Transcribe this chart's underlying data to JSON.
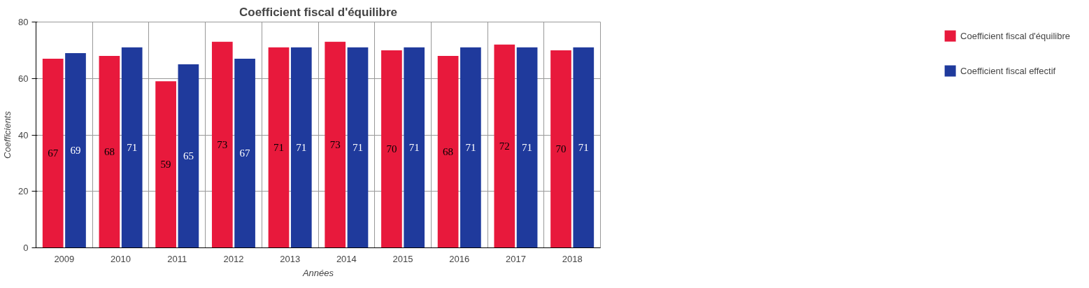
{
  "chart_data": {
    "type": "bar",
    "title": "Coefficient fiscal d'équilibre",
    "xlabel": "Années",
    "ylabel": "Coefficients",
    "categories": [
      "2009",
      "2010",
      "2011",
      "2012",
      "2013",
      "2014",
      "2015",
      "2016",
      "2017",
      "2018"
    ],
    "series": [
      {
        "name": "Coefficient fiscal d'équilibre",
        "color": "#e8193c",
        "values": [
          67,
          68,
          59,
          73,
          71,
          73,
          70,
          68,
          72,
          70
        ]
      },
      {
        "name": "Coefficient fiscal effectif",
        "color": "#1f3a9c",
        "values": [
          69,
          71,
          65,
          67,
          71,
          71,
          71,
          71,
          71,
          71
        ]
      }
    ],
    "ylim": [
      0,
      80
    ],
    "yticks": [
      0,
      20,
      40,
      60,
      80
    ],
    "grid": true,
    "legend": "right",
    "data_labels": true
  }
}
